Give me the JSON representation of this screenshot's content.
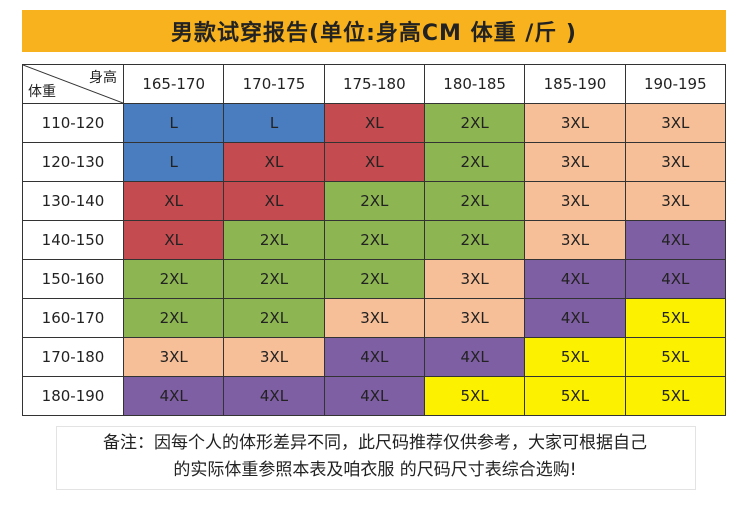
{
  "title": "男款试穿报告(单位:身高CM 体重 /斤 )",
  "corner": {
    "height_label": "身高",
    "weight_label": "体重"
  },
  "columns": [
    "165-170",
    "170-175",
    "175-180",
    "180-185",
    "185-190",
    "190-195"
  ],
  "rows": [
    {
      "weight": "110-120",
      "sizes": [
        "L",
        "L",
        "XL",
        "2XL",
        "3XL",
        "3XL"
      ]
    },
    {
      "weight": "120-130",
      "sizes": [
        "L",
        "XL",
        "XL",
        "2XL",
        "3XL",
        "3XL"
      ]
    },
    {
      "weight": "130-140",
      "sizes": [
        "XL",
        "XL",
        "2XL",
        "2XL",
        "3XL",
        "3XL"
      ]
    },
    {
      "weight": "140-150",
      "sizes": [
        "XL",
        "2XL",
        "2XL",
        "2XL",
        "3XL",
        "4XL"
      ]
    },
    {
      "weight": "150-160",
      "sizes": [
        "2XL",
        "2XL",
        "2XL",
        "3XL",
        "4XL",
        "4XL"
      ]
    },
    {
      "weight": "160-170",
      "sizes": [
        "2XL",
        "2XL",
        "3XL",
        "3XL",
        "4XL",
        "5XL"
      ]
    },
    {
      "weight": "170-180",
      "sizes": [
        "3XL",
        "3XL",
        "4XL",
        "4XL",
        "5XL",
        "5XL"
      ]
    },
    {
      "weight": "180-190",
      "sizes": [
        "4XL",
        "4XL",
        "4XL",
        "5XL",
        "5XL",
        "5XL"
      ]
    }
  ],
  "size_colors": {
    "L": "#4a7dbf",
    "XL": "#c44b4f",
    "2XL": "#8db653",
    "3XL": "#f7bf98",
    "4XL": "#7f5fa3",
    "5XL": "#fcf200"
  },
  "note": {
    "line1": "备注：因每个人的体形差异不同，此尺码推荐仅供参考，大家可根据自己",
    "line2": "的实际体重参照本表及咱衣服 的尺码尺寸表综合选购!"
  }
}
